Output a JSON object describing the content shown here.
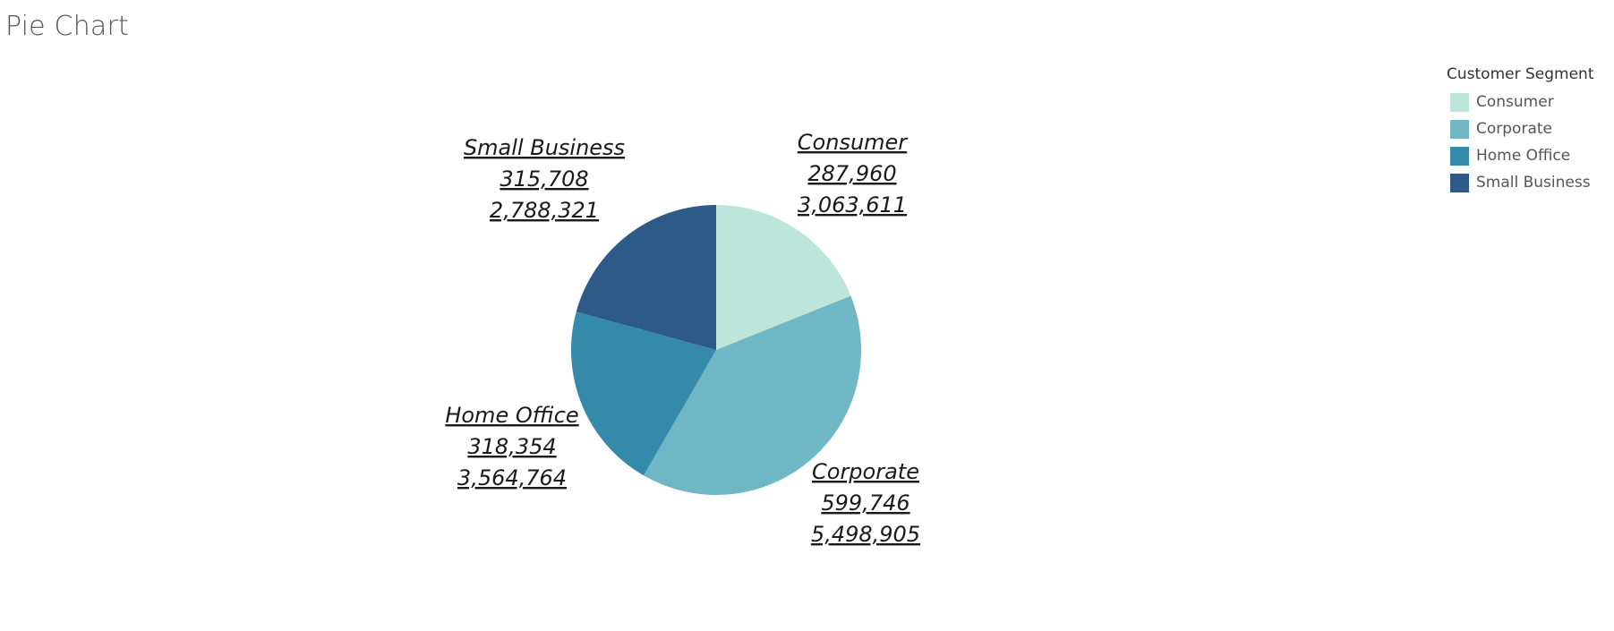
{
  "page": {
    "title": "Pie Chart"
  },
  "legend": {
    "title": "Customer Segment",
    "items": [
      {
        "label": "Consumer",
        "color": "#bde5da"
      },
      {
        "label": "Corporate",
        "color": "#6fb7c4"
      },
      {
        "label": "Home Office",
        "color": "#358aaa"
      },
      {
        "label": "Small Business",
        "color": "#2d5a86"
      }
    ]
  },
  "chart_data": {
    "type": "pie",
    "title": "Pie Chart",
    "legend_title": "Customer Segment",
    "legend_position": "top-right",
    "start": "top",
    "direction": "clockwise",
    "labels_underlined": true,
    "slices": [
      {
        "label": "Consumer",
        "value": 287960,
        "value_text": "287,960",
        "secondary": 3063611,
        "secondary_text": "3,063,611",
        "color": "#bde5da"
      },
      {
        "label": "Corporate",
        "value": 599746,
        "value_text": "599,746",
        "secondary": 5498905,
        "secondary_text": "5,498,905",
        "color": "#6fb7c4"
      },
      {
        "label": "Home Office",
        "value": 318354,
        "value_text": "318,354",
        "secondary": 3564764,
        "secondary_text": "3,564,764",
        "color": "#358aaa"
      },
      {
        "label": "Small Business",
        "value": 315708,
        "value_text": "315,708",
        "secondary": 2788321,
        "secondary_text": "2,788,321",
        "color": "#2d5a86"
      }
    ]
  }
}
